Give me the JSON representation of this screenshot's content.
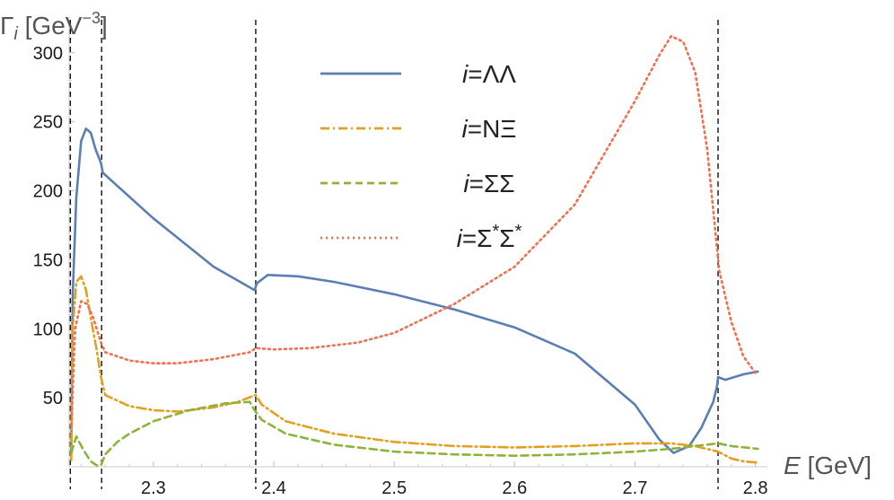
{
  "chart_data": {
    "type": "line",
    "xlabel": {
      "var": "E",
      "unit": " [GeV]"
    },
    "ylabel": {
      "var": "Γ",
      "sub": "i",
      "unit": " [GeV",
      "sup": "−3",
      "close": "]"
    },
    "xlim": [
      2.23,
      2.81
    ],
    "ylim": [
      0,
      320
    ],
    "x_ticks": [
      2.3,
      2.4,
      2.5,
      2.6,
      2.7,
      2.8
    ],
    "x_tick_labels": [
      "2.3",
      "2.4",
      "2.5",
      "2.6",
      "2.7",
      "2.8"
    ],
    "y_ticks": [
      50,
      100,
      150,
      200,
      250,
      300
    ],
    "y_tick_labels": [
      "50",
      "100",
      "150",
      "200",
      "250",
      "300"
    ],
    "thresholds": [
      2.231,
      2.257,
      2.385,
      2.769
    ],
    "legend_position": "top-center",
    "grid": false,
    "series": [
      {
        "name": {
          "prefix": "i",
          "rest": "=ΛΛ",
          "sup": ""
        },
        "color": "#5b7fb5",
        "style": "solid",
        "x": [
          2.2318,
          2.233,
          2.236,
          2.24,
          2.244,
          2.248,
          2.252,
          2.2565,
          2.258,
          2.3,
          2.35,
          2.384,
          2.386,
          2.395,
          2.42,
          2.45,
          2.5,
          2.55,
          2.6,
          2.65,
          2.7,
          2.72,
          2.732,
          2.745,
          2.755,
          2.765,
          2.768,
          2.769,
          2.775,
          2.79,
          2.802
        ],
        "y": [
          10,
          125,
          195,
          236,
          245,
          242,
          230,
          220,
          213,
          180,
          145,
          128,
          133,
          139,
          138,
          134,
          125,
          114,
          101,
          82,
          45,
          20,
          10,
          15,
          28,
          47,
          58,
          65,
          63,
          67,
          69
        ]
      },
      {
        "name": {
          "prefix": "i",
          "rest": "=NΞ",
          "sup": ""
        },
        "color": "#e3a020",
        "style": "dashdot",
        "x": [
          2.2318,
          2.233,
          2.236,
          2.24,
          2.244,
          2.248,
          2.253,
          2.2565,
          2.26,
          2.28,
          2.3,
          2.32,
          2.35,
          2.37,
          2.385,
          2.39,
          2.41,
          2.45,
          2.5,
          2.55,
          2.6,
          2.65,
          2.7,
          2.73,
          2.75,
          2.769,
          2.78,
          2.79,
          2.802
        ],
        "y": [
          5,
          100,
          134,
          138,
          128,
          108,
          84,
          65,
          52,
          44,
          41,
          40,
          43,
          47,
          52,
          45,
          33,
          24,
          18,
          15,
          14,
          15,
          17,
          17,
          15,
          11,
          6,
          4,
          3
        ]
      },
      {
        "name": {
          "prefix": "i",
          "rest": "=ΣΣ",
          "sup": ""
        },
        "color": "#8db33a",
        "style": "dashed",
        "x": [
          2.2318,
          2.236,
          2.242,
          2.248,
          2.253,
          2.2565,
          2.26,
          2.27,
          2.28,
          2.3,
          2.33,
          2.36,
          2.38,
          2.384,
          2.39,
          2.41,
          2.45,
          2.5,
          2.55,
          2.6,
          2.65,
          2.7,
          2.73,
          2.75,
          2.769,
          2.78,
          2.802
        ],
        "y": [
          10,
          22,
          12,
          4,
          1,
          1,
          9,
          18,
          24,
          33,
          41,
          46,
          47,
          41,
          34,
          24,
          16,
          11,
          9,
          8,
          9,
          11,
          13,
          15,
          17,
          15,
          13
        ]
      },
      {
        "name": {
          "prefix": "i",
          "rest": "=Σ",
          "sup": "*",
          "rest2": "Σ",
          "sup2": "*"
        },
        "color": "#f07050",
        "style": "dotted",
        "x": [
          2.2318,
          2.235,
          2.24,
          2.245,
          2.25,
          2.2565,
          2.26,
          2.28,
          2.3,
          2.32,
          2.35,
          2.38,
          2.385,
          2.4,
          2.43,
          2.47,
          2.5,
          2.55,
          2.6,
          2.65,
          2.7,
          2.72,
          2.73,
          2.74,
          2.75,
          2.76,
          2.77,
          2.78,
          2.79,
          2.8
        ],
        "y": [
          30,
          100,
          120,
          118,
          108,
          90,
          83,
          77,
          75,
          75,
          78,
          83,
          86,
          85,
          86,
          90,
          97,
          118,
          145,
          190,
          265,
          298,
          312,
          308,
          286,
          230,
          142,
          105,
          80,
          68
        ]
      }
    ]
  }
}
